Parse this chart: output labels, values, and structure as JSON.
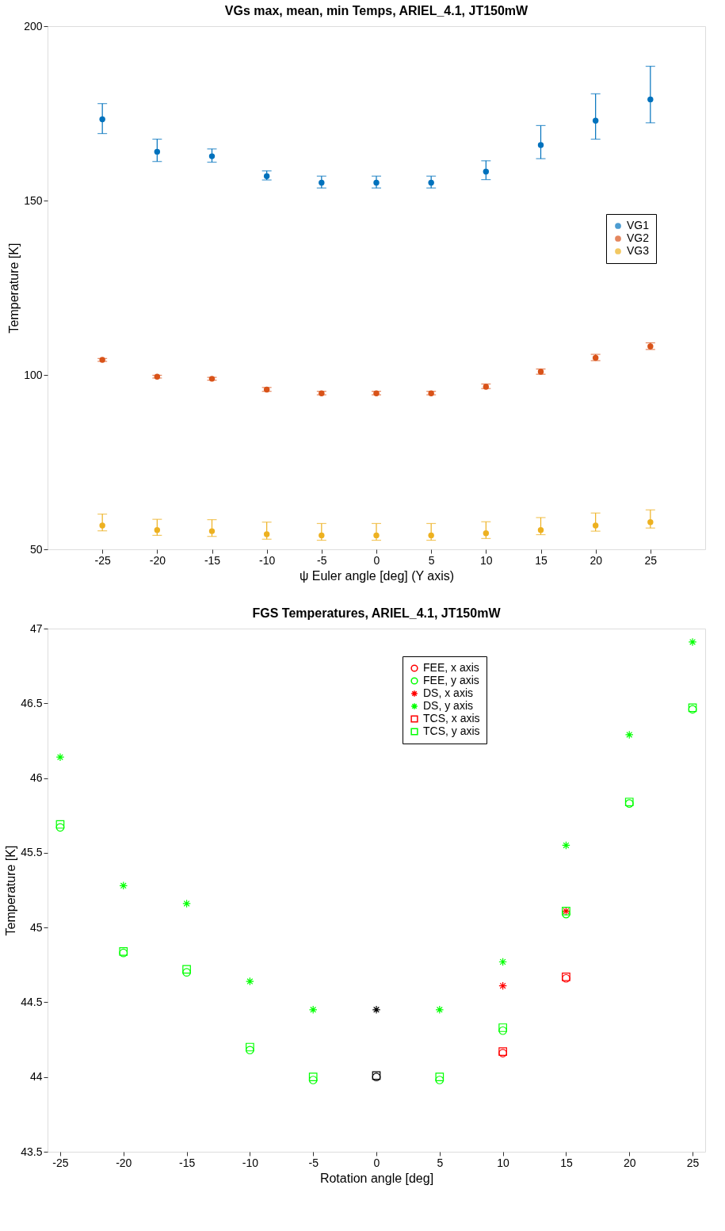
{
  "chart_data": [
    {
      "type": "scatter",
      "title": "VGs max, mean, min Temps, ARIEL_4.1, JT150mW",
      "xlabel": "ψ Euler angle [deg] (Y axis)",
      "ylabel": "Temperature [K]",
      "xlim": [
        -30,
        30
      ],
      "xticks": [
        -25,
        -20,
        -15,
        -10,
        -5,
        0,
        5,
        10,
        15,
        20,
        25
      ],
      "ylim": [
        50,
        200
      ],
      "yticks": [
        50,
        100,
        150,
        200
      ],
      "legend": "right",
      "marker": "circle",
      "x": [
        -25,
        -20,
        -15,
        -10,
        -5,
        0,
        5,
        10,
        15,
        20,
        25
      ],
      "series": [
        {
          "name": "VG1",
          "color": "#0072bd",
          "values": [
            173.3,
            164.0,
            162.7,
            157.0,
            155.1,
            155.1,
            155.1,
            158.3,
            165.9,
            172.9,
            179.0
          ],
          "errors": [
            [
              169.2,
              177.8
            ],
            [
              161.2,
              167.6
            ],
            [
              161.0,
              164.8
            ],
            [
              155.9,
              158.5
            ],
            [
              153.6,
              157.0
            ],
            [
              153.6,
              157.0
            ],
            [
              153.6,
              157.0
            ],
            [
              156.0,
              161.4
            ],
            [
              162.0,
              171.5
            ],
            [
              167.6,
              180.6
            ],
            [
              172.3,
              188.5
            ]
          ]
        },
        {
          "name": "VG2",
          "color": "#d95319",
          "values": [
            104.3,
            99.5,
            98.9,
            95.8,
            94.7,
            94.7,
            94.7,
            96.6,
            100.9,
            104.9,
            108.2
          ],
          "errors": [
            [
              103.9,
              104.7
            ],
            [
              99.1,
              99.9
            ],
            [
              98.5,
              99.3
            ],
            [
              95.3,
              96.4
            ],
            [
              94.3,
              95.3
            ],
            [
              94.3,
              95.3
            ],
            [
              94.3,
              95.3
            ],
            [
              96.1,
              97.4
            ],
            [
              100.2,
              101.7
            ],
            [
              104.1,
              105.9
            ],
            [
              107.3,
              109.2
            ]
          ]
        },
        {
          "name": "VG3",
          "color": "#edb120",
          "values": [
            56.8,
            55.5,
            55.2,
            54.3,
            54.0,
            54.0,
            54.0,
            54.6,
            55.5,
            56.8,
            57.8
          ],
          "errors": [
            [
              55.3,
              60.1
            ],
            [
              54.0,
              58.6
            ],
            [
              53.7,
              58.5
            ],
            [
              52.9,
              57.8
            ],
            [
              52.6,
              57.4
            ],
            [
              52.6,
              57.4
            ],
            [
              52.6,
              57.4
            ],
            [
              53.1,
              57.9
            ],
            [
              54.2,
              59.1
            ],
            [
              55.2,
              60.4
            ],
            [
              56.1,
              61.3
            ]
          ]
        }
      ]
    },
    {
      "type": "scatter",
      "title": "FGS Temperatures, ARIEL_4.1, JT150mW",
      "xlabel": "Rotation angle [deg]",
      "ylabel": "Temperature [K]",
      "xlim": [
        -26,
        26
      ],
      "xticks": [
        -25,
        -20,
        -15,
        -10,
        -5,
        0,
        5,
        10,
        15,
        20,
        25
      ],
      "ylim": [
        43.5,
        47
      ],
      "yticks": [
        43.5,
        44,
        44.5,
        45,
        45.5,
        46,
        46.5,
        47
      ],
      "legend": "top right",
      "series": [
        {
          "name": "FEE, x axis",
          "color": "#ff0000",
          "marker": "circle",
          "x": [
            10,
            15
          ],
          "values": [
            44.16,
            44.66
          ]
        },
        {
          "name": "FEE, y axis",
          "color": "#00ff00",
          "marker": "circle",
          "x": [
            -25,
            -20,
            -15,
            -10,
            -5,
            5,
            10,
            15,
            20,
            25
          ],
          "values": [
            45.67,
            44.83,
            44.7,
            44.18,
            43.98,
            43.98,
            44.31,
            45.09,
            45.83,
            46.46
          ]
        },
        {
          "name": "DS, x axis",
          "color": "#ff0000",
          "marker": "cross",
          "x": [
            10,
            15
          ],
          "values": [
            44.61,
            45.11
          ]
        },
        {
          "name": "DS, y axis",
          "color": "#00ff00",
          "marker": "cross",
          "x": [
            -25,
            -20,
            -15,
            -10,
            -5,
            5,
            10,
            15,
            20,
            25
          ],
          "values": [
            46.14,
            45.28,
            45.16,
            44.64,
            44.45,
            44.45,
            44.77,
            45.55,
            46.29,
            46.91
          ]
        },
        {
          "name": "TCS, x axis",
          "color": "#ff0000",
          "marker": "square",
          "x": [
            10,
            15
          ],
          "values": [
            44.17,
            44.67
          ]
        },
        {
          "name": "TCS, y axis",
          "color": "#00ff00",
          "marker": "square",
          "x": [
            -25,
            -20,
            -15,
            -10,
            -5,
            5,
            10,
            15,
            20,
            25
          ],
          "values": [
            45.69,
            44.84,
            44.72,
            44.2,
            44.0,
            44.0,
            44.33,
            45.11,
            45.84,
            46.47
          ]
        },
        {
          "color": "#000000",
          "marker": "circle",
          "x": [
            0
          ],
          "values": [
            44.0
          ]
        },
        {
          "color": "#000000",
          "marker": "cross",
          "x": [
            0
          ],
          "values": [
            44.45
          ]
        },
        {
          "color": "#000000",
          "marker": "square",
          "x": [
            0
          ],
          "values": [
            44.01
          ]
        }
      ]
    }
  ]
}
